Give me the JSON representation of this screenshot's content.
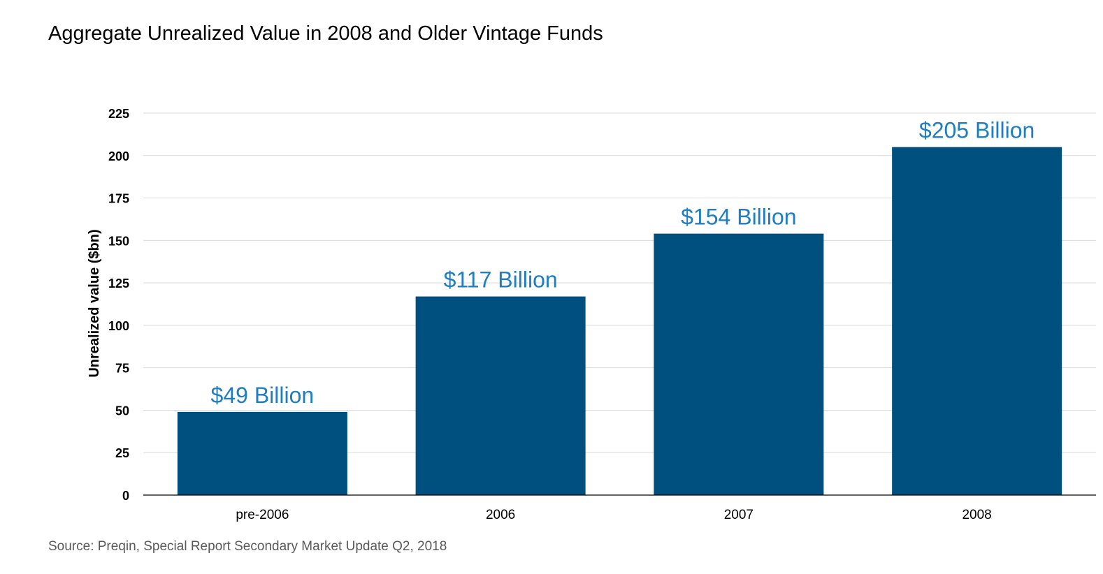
{
  "chart_data": {
    "type": "bar",
    "title": "Aggregate Unrealized Value in 2008 and Older Vintage Funds",
    "source": "Source: Preqin, Special Report Secondary Market Update Q2, 2018",
    "ylabel": "Unrealized value ($bn)",
    "xlabel": "",
    "categories": [
      "pre-2006",
      "2006",
      "2007",
      "2008"
    ],
    "values": [
      49,
      117,
      154,
      205
    ],
    "data_labels": [
      "$49 Billion",
      "$117 Billion",
      "$154 Billion",
      "$205 Billion"
    ],
    "ylim": [
      0,
      225
    ],
    "yticks": [
      0,
      25,
      50,
      75,
      100,
      125,
      150,
      175,
      200,
      225
    ],
    "grid": true,
    "legend": "none",
    "colors": {
      "bar": "#00507F",
      "data_label": "#1F7DC1",
      "grid": "#D9D9D9",
      "axis": "#000000"
    }
  }
}
